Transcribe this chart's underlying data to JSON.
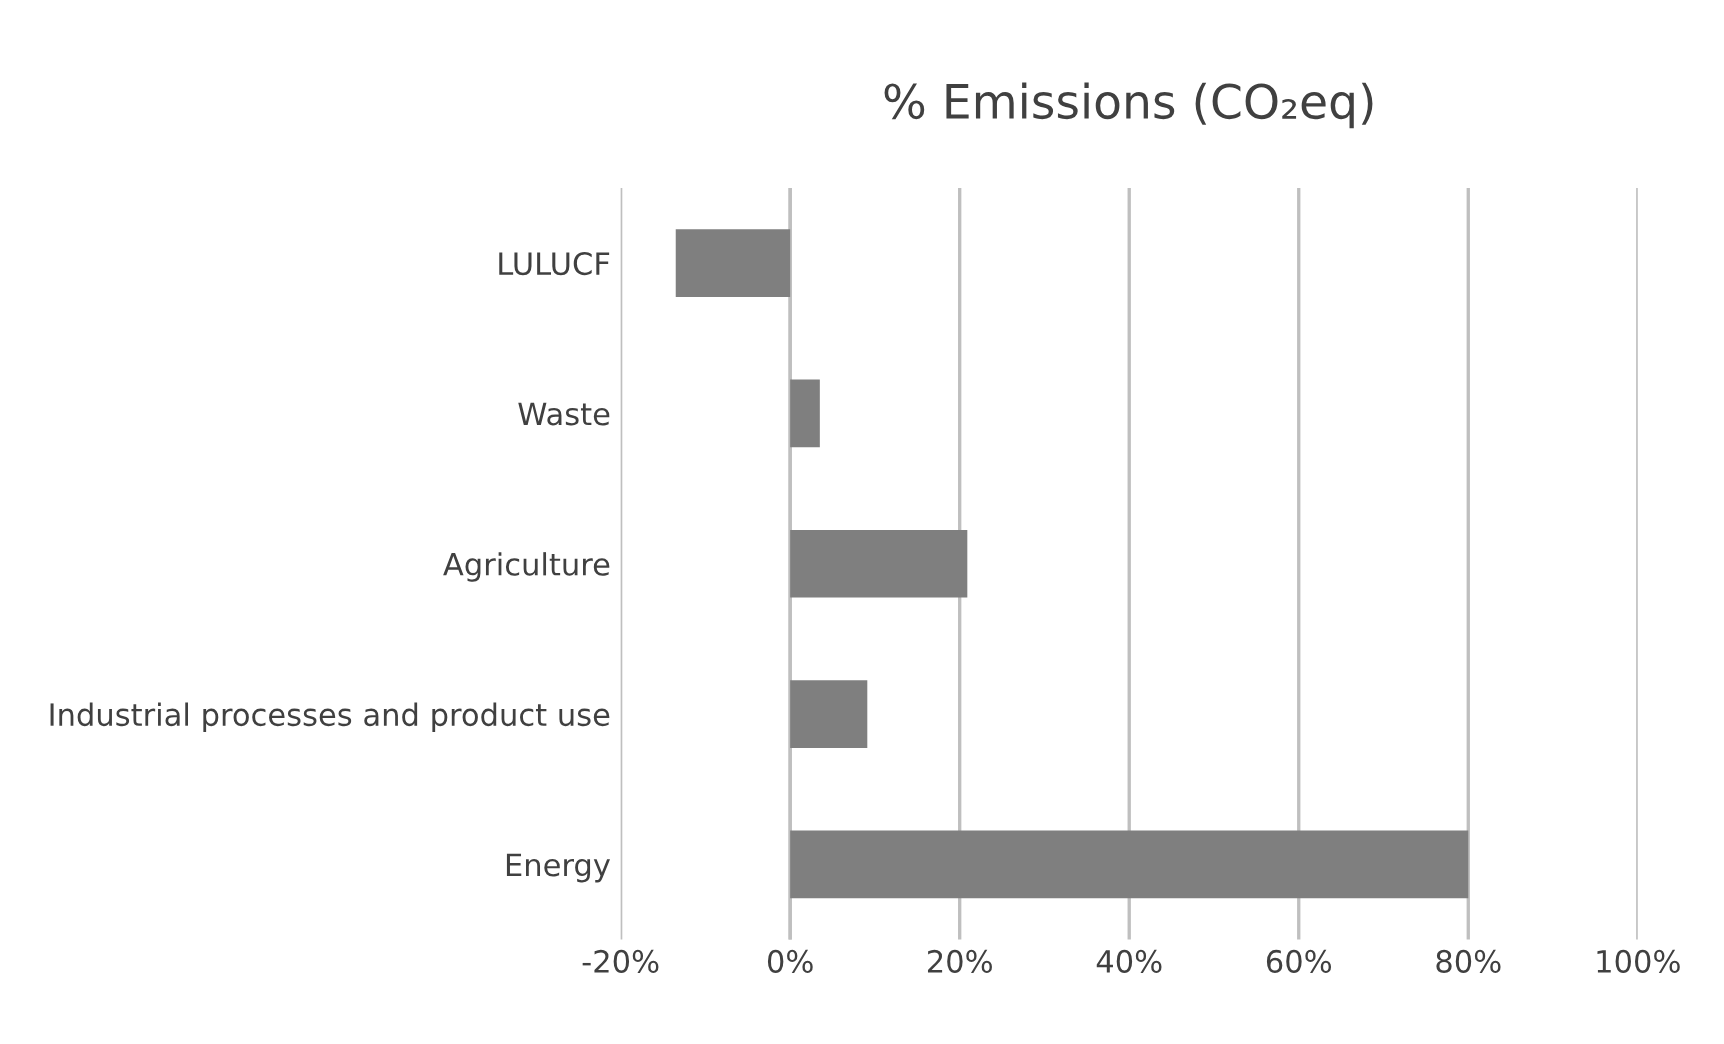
{
  "chart_data": {
    "type": "bar",
    "orientation": "horizontal",
    "title": "% Emissions (CO₂eq)",
    "categories": [
      "LULUCF",
      "Waste",
      "Agriculture",
      "Industrial processes and product use",
      "Energy"
    ],
    "values": [
      -13.5,
      3.5,
      20.9,
      9.1,
      80
    ],
    "color": "#7f7f7f",
    "xlim": [
      -20,
      100
    ],
    "xticks": [
      {
        "value": -20,
        "label": "-20%"
      },
      {
        "value": 0,
        "label": "0%"
      },
      {
        "value": 20,
        "label": "20%"
      },
      {
        "value": 40,
        "label": "40%"
      },
      {
        "value": 60,
        "label": "60%"
      },
      {
        "value": 80,
        "label": "80%"
      },
      {
        "value": 100,
        "label": "100%"
      }
    ],
    "grid": "x",
    "legend": false
  }
}
